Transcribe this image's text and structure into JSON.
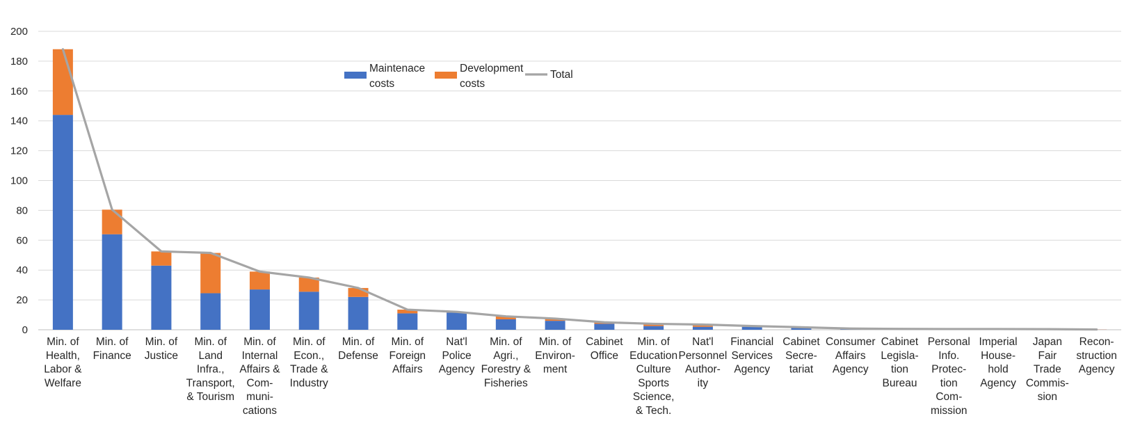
{
  "chart_data": {
    "type": "bar",
    "stacked": true,
    "title": "",
    "xlabel": "",
    "ylabel": "",
    "ylim": [
      0,
      200
    ],
    "yticks": [
      0,
      20,
      40,
      60,
      80,
      100,
      120,
      140,
      160,
      180,
      200
    ],
    "grid": true,
    "legend_position": "top-center",
    "categories": [
      [
        "Min. of",
        "Health,",
        "Labor &",
        "Welfare"
      ],
      [
        "Min. of",
        "Finance"
      ],
      [
        "Min. of",
        "Justice"
      ],
      [
        "Min. of",
        "Land",
        "Infra.,",
        "Transport,",
        "& Tourism"
      ],
      [
        "Min. of",
        "Internal",
        "Affairs &",
        "Com-",
        "muni-",
        "cations"
      ],
      [
        "Min. of",
        "Econ.,",
        "Trade &",
        "Industry"
      ],
      [
        "Min. of",
        "Defense"
      ],
      [
        "Min. of",
        "Foreign",
        "Affairs"
      ],
      [
        "Nat'l",
        "Police",
        "Agency"
      ],
      [
        "Min. of",
        "Agri.,",
        "Forestry &",
        "Fisheries"
      ],
      [
        "Min. of",
        "Environ-",
        "ment"
      ],
      [
        "Cabinet",
        "Office"
      ],
      [
        "Min. of",
        "Education",
        "Culture",
        "Sports",
        "Science,",
        "& Tech."
      ],
      [
        "Nat'l",
        "Personnel",
        "Author-",
        "ity"
      ],
      [
        "Financial",
        "Services",
        "Agency"
      ],
      [
        "Cabinet",
        "Secre-",
        "tariat"
      ],
      [
        "Consumer",
        "Affairs",
        "Agency"
      ],
      [
        "Cabinet",
        "Legisla-",
        "tion",
        "Bureau"
      ],
      [
        "Personal",
        "Info.",
        "Protec-",
        "tion",
        "Com-",
        "mission"
      ],
      [
        "Imperial",
        "House-",
        "hold",
        "Agency"
      ],
      [
        "Japan",
        "Fair",
        "Trade",
        "Commis-",
        "sion"
      ],
      [
        "Recon-",
        "struction",
        "Agency"
      ]
    ],
    "series": [
      {
        "name": "Maintenace costs",
        "kind": "bar",
        "color": "#4472C4",
        "values": [
          144,
          64,
          43,
          24.5,
          27,
          25.5,
          22,
          11,
          11.5,
          7,
          6,
          4,
          2.5,
          2,
          2,
          1.2,
          0.6,
          0.4,
          0.3,
          0.3,
          0.2,
          0.1
        ]
      },
      {
        "name": "Development costs",
        "kind": "bar",
        "color": "#ED7D31",
        "values": [
          44,
          16.5,
          9.5,
          27,
          12,
          9.5,
          6,
          2.5,
          0.5,
          2,
          1.5,
          1,
          1.5,
          1.5,
          0.5,
          0.5,
          0.2,
          0.2,
          0.2,
          0.2,
          0.2,
          0.1
        ]
      },
      {
        "name": "Total",
        "kind": "line",
        "color": "#A5A5A5",
        "values": [
          188,
          80.5,
          52.5,
          51.5,
          39,
          35,
          28,
          13.5,
          12,
          9,
          7.5,
          5,
          4,
          3.5,
          2.5,
          1.7,
          0.8,
          0.6,
          0.5,
          0.5,
          0.4,
          0.2
        ]
      }
    ]
  }
}
